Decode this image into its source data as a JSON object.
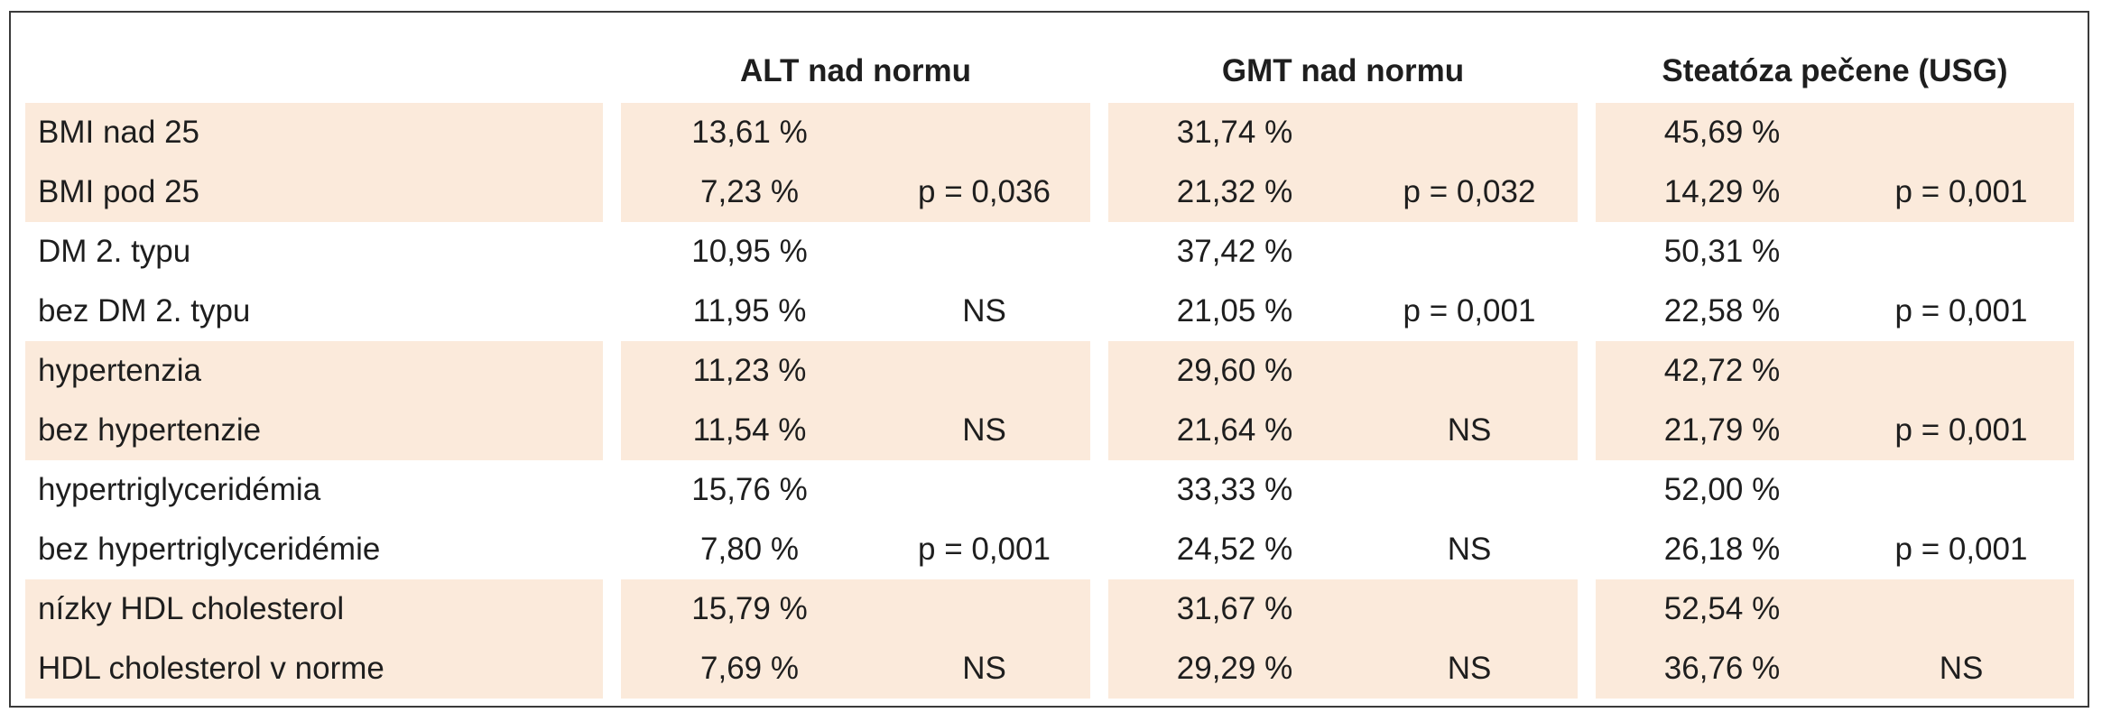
{
  "table": {
    "headers": [
      "ALT nad normu",
      "GMT nad normu",
      "Steatóza pečene (USG)"
    ],
    "groups": [
      {
        "shaded": true,
        "rows": [
          {
            "label": "BMI nad 25",
            "values": [
              "13,61 %",
              "31,74 %",
              "45,69 %"
            ],
            "p": [
              "",
              "",
              ""
            ]
          },
          {
            "label": "BMI pod 25",
            "values": [
              "7,23 %",
              "21,32 %",
              "14,29 %"
            ],
            "p": [
              "p = 0,036",
              "p = 0,032",
              "p = 0,001"
            ]
          }
        ]
      },
      {
        "shaded": false,
        "rows": [
          {
            "label": "DM 2. typu",
            "values": [
              "10,95 %",
              "37,42 %",
              "50,31 %"
            ],
            "p": [
              "",
              "",
              ""
            ]
          },
          {
            "label": "bez DM 2. typu",
            "values": [
              "11,95 %",
              "21,05 %",
              "22,58 %"
            ],
            "p": [
              "NS",
              "p = 0,001",
              "p = 0,001"
            ]
          }
        ]
      },
      {
        "shaded": true,
        "rows": [
          {
            "label": "hypertenzia",
            "values": [
              "11,23 %",
              "29,60 %",
              "42,72 %"
            ],
            "p": [
              "",
              "",
              ""
            ]
          },
          {
            "label": "bez hypertenzie",
            "values": [
              "11,54 %",
              "21,64 %",
              "21,79 %"
            ],
            "p": [
              "NS",
              "NS",
              "p = 0,001"
            ]
          }
        ]
      },
      {
        "shaded": false,
        "rows": [
          {
            "label": "hypertriglyceridémia",
            "values": [
              "15,76 %",
              "33,33 %",
              "52,00 %"
            ],
            "p": [
              "",
              "",
              ""
            ]
          },
          {
            "label": "bez hypertriglyceridémie",
            "values": [
              "7,80 %",
              "24,52 %",
              "26,18 %"
            ],
            "p": [
              "p = 0,001",
              "NS",
              "p = 0,001"
            ]
          }
        ]
      },
      {
        "shaded": true,
        "rows": [
          {
            "label": "nízky HDL cholesterol",
            "values": [
              "15,79 %",
              "31,67 %",
              "52,54 %"
            ],
            "p": [
              "",
              "",
              ""
            ]
          },
          {
            "label": "HDL cholesterol v norme",
            "values": [
              "7,69 %",
              "29,29 %",
              "36,76 %"
            ],
            "p": [
              "NS",
              "NS",
              "NS"
            ]
          }
        ]
      }
    ],
    "colors": {
      "shade": "#fbeadb",
      "border": "#3a3a3a",
      "text": "#1e1e1e"
    }
  }
}
